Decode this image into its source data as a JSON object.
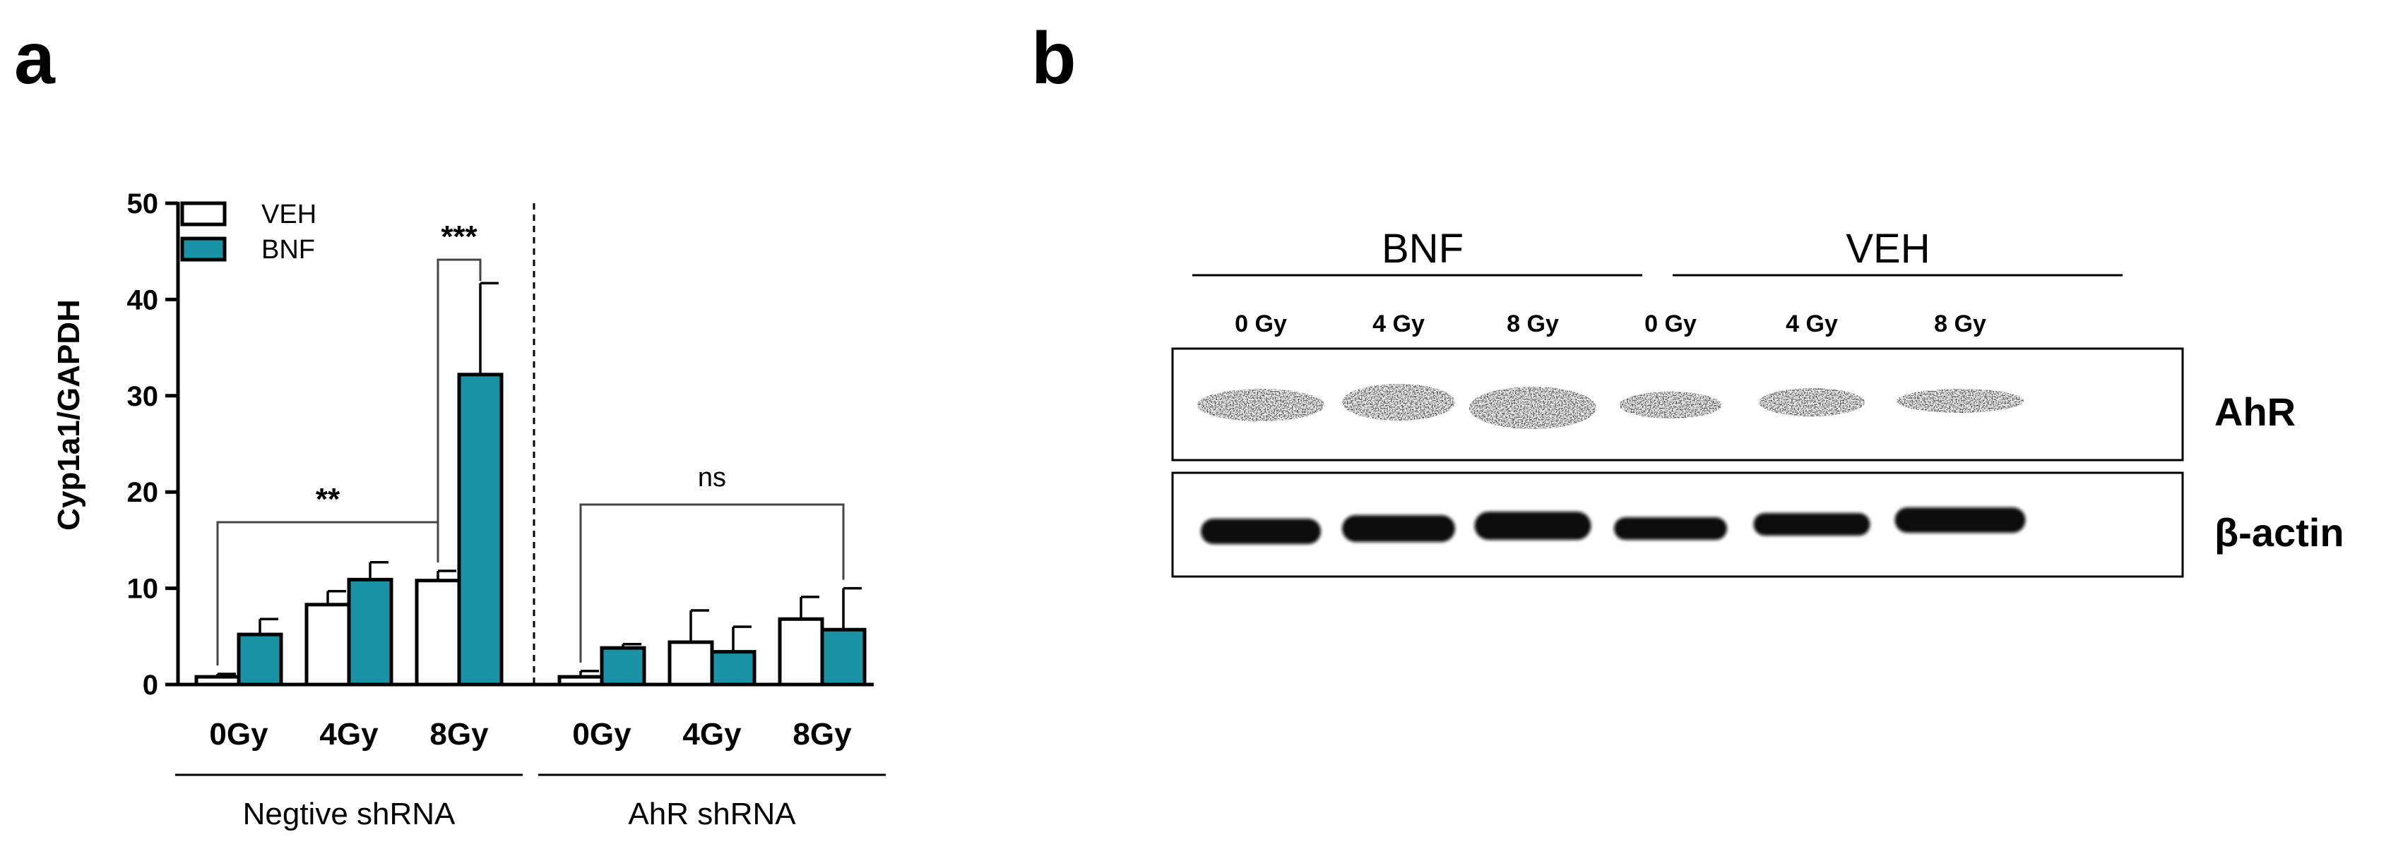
{
  "figure": {
    "panel_a_letter": "a",
    "panel_b_letter": "b"
  },
  "chart_data": {
    "type": "bar",
    "ylabel": "Cyp1a1/GAPDH",
    "ylim": [
      0,
      50
    ],
    "yticks": [
      0,
      10,
      20,
      30,
      40,
      50
    ],
    "legend": {
      "placement": "top-left",
      "entries": [
        "VEH",
        "BNF"
      ]
    },
    "series_colors": {
      "VEH": "#ffffff",
      "BNF": "#1a93a6"
    },
    "groups": [
      {
        "name": "Negtive shRNA",
        "categories": [
          "0Gy",
          "4Gy",
          "8Gy"
        ],
        "series": [
          {
            "name": "VEH",
            "values": [
              0.8,
              8.3,
              10.8
            ],
            "errors": [
              0.3,
              1.4,
              1.0
            ]
          },
          {
            "name": "BNF",
            "values": [
              5.2,
              10.9,
              32.2
            ],
            "errors": [
              1.6,
              1.8,
              9.5
            ]
          }
        ]
      },
      {
        "name": "AhR shRNA",
        "categories": [
          "0Gy",
          "4Gy",
          "8Gy"
        ],
        "series": [
          {
            "name": "VEH",
            "values": [
              0.8,
              4.4,
              6.8
            ],
            "errors": [
              0.6,
              3.3,
              2.3
            ]
          },
          {
            "name": "BNF",
            "values": [
              3.8,
              3.4,
              5.7
            ],
            "errors": [
              0.4,
              2.6,
              4.3
            ]
          }
        ]
      }
    ],
    "annotations": [
      {
        "text": "**",
        "from": "Negtive shRNA 0Gy VEH",
        "to": "Negtive shRNA 8Gy VEH"
      },
      {
        "text": "***",
        "from": "Negtive shRNA 8Gy VEH",
        "to": "Negtive shRNA 8Gy BNF"
      },
      {
        "text": "ns",
        "from": "AhR shRNA 0Gy VEH",
        "to": "AhR shRNA 8Gy BNF"
      }
    ]
  },
  "western_blot": {
    "treatments": [
      "BNF",
      "VEH"
    ],
    "lanes": [
      "0 Gy",
      "4 Gy",
      "8 Gy",
      "0 Gy",
      "4 Gy",
      "8 Gy"
    ],
    "rows": [
      "AhR",
      "β-actin"
    ]
  }
}
